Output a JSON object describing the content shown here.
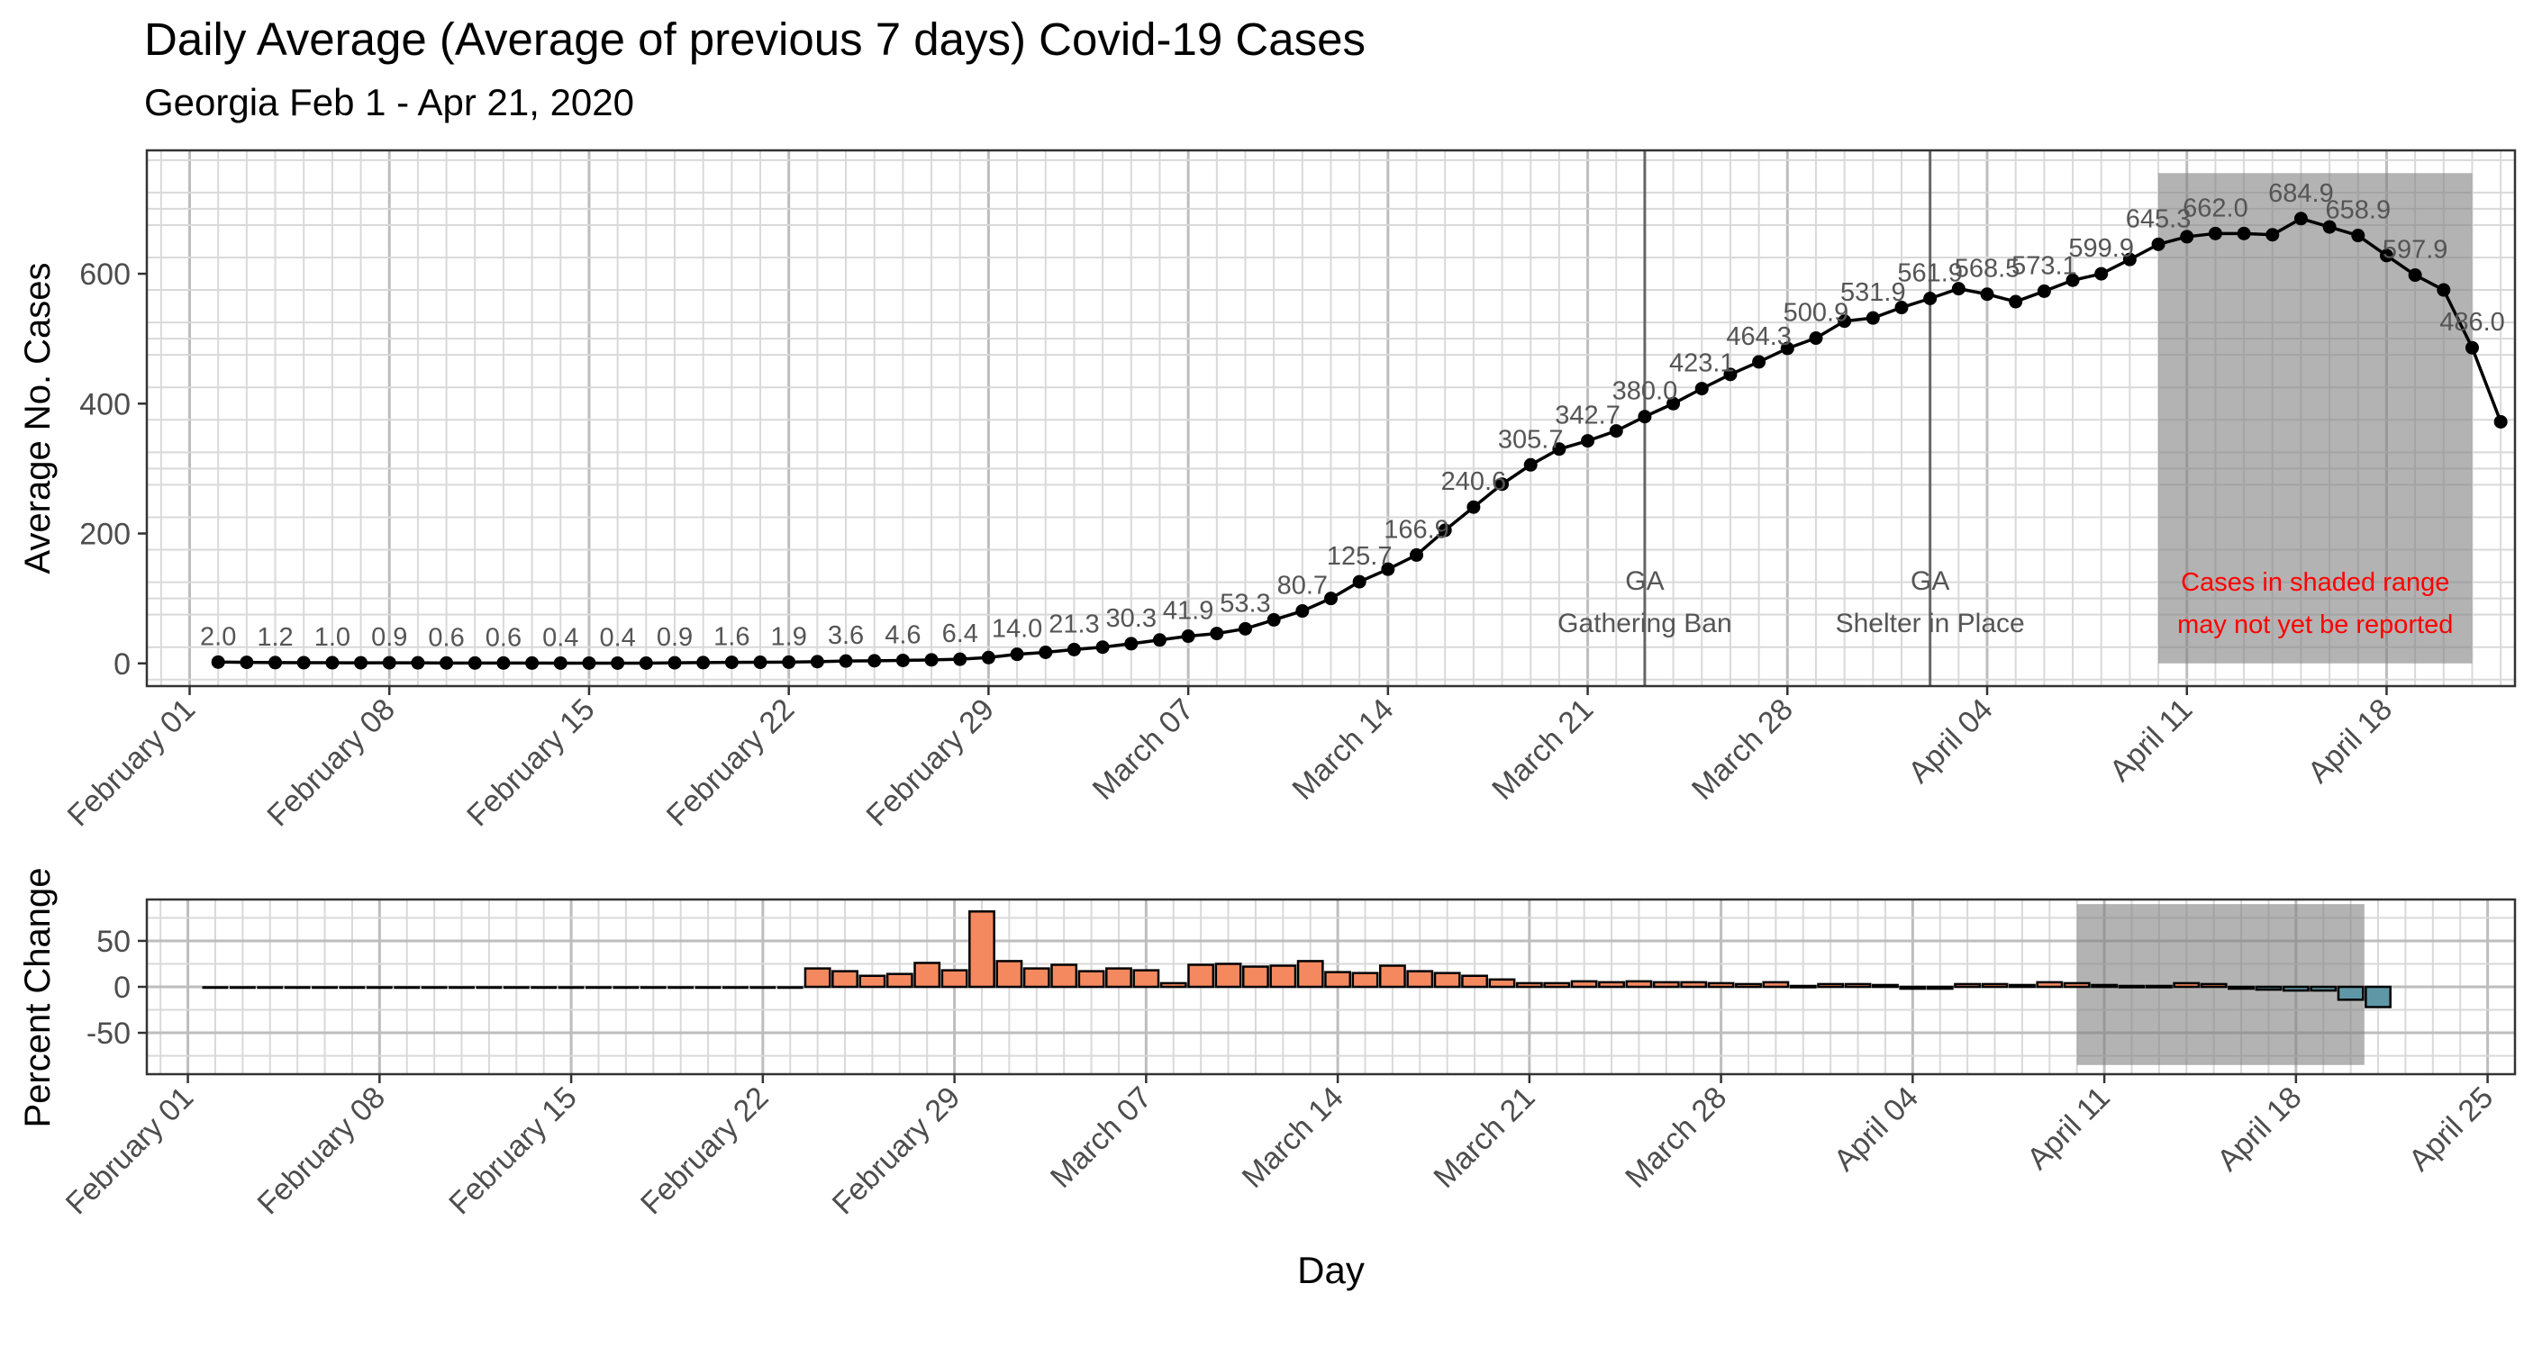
{
  "title": "Daily Average (Average of previous 7 days) Covid-19 Cases",
  "subtitle": "Georgia Feb 1 - Apr 21, 2020",
  "colors": {
    "line": "#000000",
    "bar_positive": "#f4895f",
    "bar_negative": "#5f97a7",
    "shade": "#808080",
    "gridline": "#d9d9d9",
    "event_line": "#666666",
    "note_text": "#ff0000",
    "label_text": "#555555"
  },
  "chart_data": [
    {
      "type": "line",
      "panel": "top",
      "ylabel": "Average No. Cases",
      "xlabel": "",
      "ylim": [
        -35,
        790
      ],
      "yticks": [
        0,
        200,
        400,
        600
      ],
      "xlim_days": [
        -1.5,
        81.5
      ],
      "x_ticks": [
        {
          "day": 0,
          "label": "February 01"
        },
        {
          "day": 7,
          "label": "February 08"
        },
        {
          "day": 14,
          "label": "February 15"
        },
        {
          "day": 21,
          "label": "February 22"
        },
        {
          "day": 28,
          "label": "February 29"
        },
        {
          "day": 35,
          "label": "March 07"
        },
        {
          "day": 42,
          "label": "March 14"
        },
        {
          "day": 49,
          "label": "March 21"
        },
        {
          "day": 56,
          "label": "March 28"
        },
        {
          "day": 63,
          "label": "April 04"
        },
        {
          "day": 70,
          "label": "April 11"
        },
        {
          "day": 77,
          "label": "April 18"
        }
      ],
      "start_day": 1,
      "values": [
        2.0,
        1.6,
        1.2,
        1.1,
        1.0,
        0.9,
        0.9,
        0.8,
        0.6,
        0.6,
        0.6,
        0.5,
        0.4,
        0.4,
        0.4,
        0.4,
        0.9,
        1.2,
        1.6,
        1.7,
        1.9,
        2.6,
        3.6,
        4.0,
        4.6,
        5.4,
        6.4,
        9.0,
        14.0,
        17.0,
        21.3,
        25.0,
        30.3,
        36.0,
        41.9,
        46.0,
        53.3,
        67.0,
        80.7,
        100.0,
        125.7,
        145.0,
        166.9,
        205.0,
        240.6,
        276.0,
        305.7,
        330.0,
        342.7,
        358.0,
        380.0,
        400.0,
        423.1,
        445.0,
        464.3,
        485.0,
        500.9,
        527.0,
        531.9,
        548.0,
        561.9,
        577.0,
        568.5,
        557.0,
        573.1,
        590.0,
        599.9,
        622.0,
        645.3,
        657.0,
        662.0,
        662.0,
        660.0,
        684.9,
        672.0,
        658.9,
        628.0,
        597.9,
        575.0,
        486.0,
        372.0
      ],
      "point_labels": [
        {
          "index": 0,
          "text": "2.0"
        },
        {
          "index": 2,
          "text": "1.2"
        },
        {
          "index": 4,
          "text": "1.0"
        },
        {
          "index": 6,
          "text": "0.9"
        },
        {
          "index": 8,
          "text": "0.6"
        },
        {
          "index": 10,
          "text": "0.6"
        },
        {
          "index": 12,
          "text": "0.4"
        },
        {
          "index": 14,
          "text": "0.4"
        },
        {
          "index": 16,
          "text": "0.9"
        },
        {
          "index": 18,
          "text": "1.6"
        },
        {
          "index": 20,
          "text": "1.9"
        },
        {
          "index": 22,
          "text": "3.6"
        },
        {
          "index": 24,
          "text": "4.6"
        },
        {
          "index": 26,
          "text": "6.4"
        },
        {
          "index": 28,
          "text": "14.0"
        },
        {
          "index": 30,
          "text": "21.3"
        },
        {
          "index": 32,
          "text": "30.3"
        },
        {
          "index": 34,
          "text": "41.9"
        },
        {
          "index": 36,
          "text": "53.3"
        },
        {
          "index": 38,
          "text": "80.7"
        },
        {
          "index": 40,
          "text": "125.7"
        },
        {
          "index": 42,
          "text": "166.9"
        },
        {
          "index": 44,
          "text": "240.6"
        },
        {
          "index": 46,
          "text": "305.7"
        },
        {
          "index": 48,
          "text": "342.7"
        },
        {
          "index": 50,
          "text": "380.0"
        },
        {
          "index": 52,
          "text": "423.1"
        },
        {
          "index": 54,
          "text": "464.3"
        },
        {
          "index": 56,
          "text": "500.9"
        },
        {
          "index": 58,
          "text": "531.9"
        },
        {
          "index": 60,
          "text": "561.9"
        },
        {
          "index": 62,
          "text": "568.5"
        },
        {
          "index": 64,
          "text": "573.1"
        },
        {
          "index": 66,
          "text": "599.9"
        },
        {
          "index": 68,
          "text": "645.3"
        },
        {
          "index": 70,
          "text": "662.0"
        },
        {
          "index": 73,
          "text": "684.9"
        },
        {
          "index": 75,
          "text": "658.9"
        },
        {
          "index": 77,
          "text": "597.9"
        },
        {
          "index": 79,
          "text": "486.0"
        }
      ],
      "event_lines": [
        {
          "day": 51,
          "label_line1": "GA",
          "label_line2": "Gathering Ban"
        },
        {
          "day": 61,
          "label_line1": "GA",
          "label_line2": "Shelter in Place"
        }
      ],
      "shaded_range": {
        "from_day": 69,
        "to_day": 80,
        "ymin": 0,
        "ymax": 755
      },
      "shade_note": [
        "Cases in shaded range",
        "may not yet be reported"
      ]
    },
    {
      "type": "bar",
      "panel": "bottom",
      "ylabel": "Percent Change",
      "xlabel": "Day",
      "ylim": [
        -95,
        95
      ],
      "yticks": [
        -50,
        0,
        50
      ],
      "xlim_days": [
        -1.5,
        85
      ],
      "x_ticks": [
        {
          "day": 0,
          "label": "February 01"
        },
        {
          "day": 7,
          "label": "February 08"
        },
        {
          "day": 14,
          "label": "February 15"
        },
        {
          "day": 21,
          "label": "February 22"
        },
        {
          "day": 28,
          "label": "February 29"
        },
        {
          "day": 35,
          "label": "March 07"
        },
        {
          "day": 42,
          "label": "March 14"
        },
        {
          "day": 49,
          "label": "March 21"
        },
        {
          "day": 56,
          "label": "March 28"
        },
        {
          "day": 63,
          "label": "April 04"
        },
        {
          "day": 70,
          "label": "April 11"
        },
        {
          "day": 77,
          "label": "April 18"
        },
        {
          "day": 84,
          "label": "April 25"
        }
      ],
      "start_day": 1,
      "values": [
        0,
        0,
        0,
        0,
        0,
        0,
        0,
        0,
        0,
        0,
        0,
        0,
        0,
        0,
        0,
        0,
        0,
        0,
        0,
        0,
        0,
        0,
        20,
        17,
        12,
        14,
        26,
        18,
        82,
        28,
        20,
        24,
        17,
        20,
        18,
        4,
        24,
        25,
        22,
        23,
        28,
        16,
        15,
        23,
        17,
        15,
        12,
        8,
        4,
        4,
        6,
        5,
        6,
        5,
        5,
        4,
        3,
        5,
        1,
        3,
        3,
        2,
        -2,
        -2,
        3,
        3,
        2,
        5,
        4,
        2,
        1,
        1,
        4,
        3,
        -2,
        -3,
        -4,
        -4,
        -14,
        -22
      ],
      "shaded_range": {
        "from_day": 69,
        "to_day": 79.5,
        "ymin": -85,
        "ymax": 90
      }
    }
  ]
}
